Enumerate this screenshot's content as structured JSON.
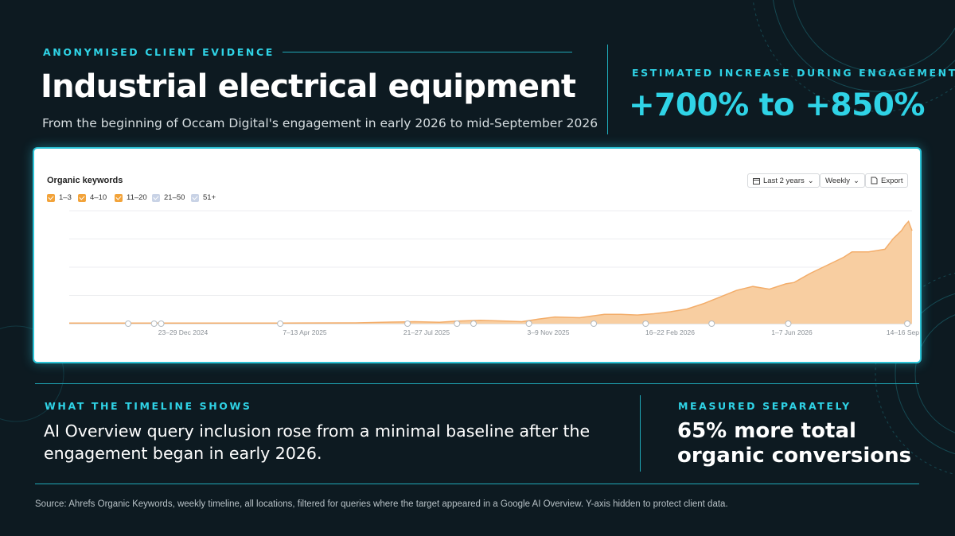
{
  "header": {
    "kicker": "ANONYMISED CLIENT EVIDENCE",
    "title": "Industrial electrical equipment",
    "subtitle": "From the beginning of Occam Digital's engagement in early 2026 to mid-September 2026"
  },
  "stat": {
    "kicker": "ESTIMATED INCREASE DURING ENGAGEMENT",
    "value": "+700% to +850%"
  },
  "chart_widget": {
    "title": "Organic keywords",
    "legend": [
      {
        "label": "1–3",
        "checked": true,
        "color": "#f2a33a"
      },
      {
        "label": "4–10",
        "checked": true,
        "color": "#f2a33a"
      },
      {
        "label": "11–20",
        "checked": true,
        "color": "#f2a33a"
      },
      {
        "label": "21–50",
        "checked": false,
        "color": "#c9d3e6"
      },
      {
        "label": "51+",
        "checked": false,
        "color": "#c9d3e6"
      }
    ],
    "controls": {
      "range": "Last 2 years",
      "interval": "Weekly",
      "export": "Export"
    }
  },
  "chart_data": {
    "type": "area",
    "title": "Organic keywords",
    "xlabel": "",
    "ylabel": "",
    "y_axis_hidden": true,
    "grid": true,
    "fill_color": "#f8ceA1",
    "line_color": "#f3ad6a",
    "x_tick_labels": [
      "23–29 Dec 2024",
      "7–13 Apr 2025",
      "21–27 Jul 2025",
      "3–9 Nov 2025",
      "16–22 Feb 2026",
      "1–7 Jun 2026",
      "14–16 Sep"
    ],
    "x_range": [
      "2024-10-01",
      "2026-09-16"
    ],
    "annotation_dates": [
      "2024-11-20",
      "2024-12-12",
      "2024-12-18",
      "2025-03-29",
      "2025-07-15",
      "2025-08-26",
      "2025-09-09",
      "2025-10-26",
      "2025-12-20",
      "2026-02-02",
      "2026-03-30",
      "2026-06-03",
      "2026-09-12"
    ],
    "series": [
      {
        "points": [
          [
            "2024-10-01",
            0.5
          ],
          [
            "2024-12-12",
            0.5
          ],
          [
            "2025-03-29",
            0.5
          ],
          [
            "2025-06-01",
            0.6
          ],
          [
            "2025-07-01",
            1.2
          ],
          [
            "2025-07-21",
            1.5
          ],
          [
            "2025-08-11",
            1.0
          ],
          [
            "2025-08-26",
            2.0
          ],
          [
            "2025-09-15",
            2.5
          ],
          [
            "2025-10-06",
            2.0
          ],
          [
            "2025-10-20",
            1.5
          ],
          [
            "2025-11-03",
            3.5
          ],
          [
            "2025-11-17",
            5.0
          ],
          [
            "2025-12-08",
            4.5
          ],
          [
            "2025-12-29",
            7.0
          ],
          [
            "2026-01-12",
            7.0
          ],
          [
            "2026-01-26",
            6.5
          ],
          [
            "2026-02-09",
            7.5
          ],
          [
            "2026-02-23",
            9.0
          ],
          [
            "2026-03-09",
            11.0
          ],
          [
            "2026-03-23",
            15.0
          ],
          [
            "2026-04-06",
            20.0
          ],
          [
            "2026-04-20",
            25.0
          ],
          [
            "2026-05-04",
            28.0
          ],
          [
            "2026-05-18",
            26.0
          ],
          [
            "2026-06-01",
            30.0
          ],
          [
            "2026-06-08",
            31.0
          ],
          [
            "2026-06-22",
            38.0
          ],
          [
            "2026-07-06",
            44.0
          ],
          [
            "2026-07-20",
            50.0
          ],
          [
            "2026-07-27",
            54.0
          ],
          [
            "2026-08-10",
            54.0
          ],
          [
            "2026-08-17",
            55.0
          ],
          [
            "2026-08-24",
            56.0
          ],
          [
            "2026-08-31",
            64.0
          ],
          [
            "2026-09-07",
            70.0
          ],
          [
            "2026-09-10",
            74.0
          ],
          [
            "2026-09-13",
            77.0
          ],
          [
            "2026-09-16",
            70.0
          ]
        ]
      }
    ],
    "ylim": [
      0,
      85
    ]
  },
  "timeline": {
    "kicker": "WHAT THE TIMELINE SHOWS",
    "body": "AI Overview query inclusion rose from a minimal baseline after the engagement began in early 2026."
  },
  "measured": {
    "kicker": "MEASURED SEPARATELY",
    "body": "65% more total organic conversions"
  },
  "source": "Source: Ahrefs Organic Keywords, weekly timeline, all locations, filtered for queries where the target appeared in a Google AI Overview. Y-axis hidden to protect client data.",
  "colors": {
    "background": "#0d1a21",
    "accent": "#2fd3e6",
    "text": "#ffffff"
  }
}
